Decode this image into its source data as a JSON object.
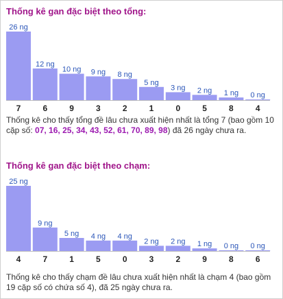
{
  "colors": {
    "title": "#a0158a",
    "bar": "#9b9bf2",
    "value_label": "#2a55b8",
    "axis_label": "#222222",
    "highlight": "#9c1ab0"
  },
  "sections": [
    {
      "title": "Thống kê gan đặc biệt theo tổng:",
      "desc_before": "Thống kê cho thấy tổng đề lâu chưa xuất hiện nhất là tổng 7 (bao gồm 10 cặp số: ",
      "desc_highlight": "07, 16, 25, 34, 43, 52, 61, 70, 89, 98",
      "desc_after": ") đã 26 ngày chưa ra."
    },
    {
      "title": "Thống kê gan đặc biệt theo chạm:",
      "desc_before": "Thống kê cho thấy chạm đề lâu chưa xuất hiện nhất là chạm 4 (bao gồm 19 cặp số có chứa số 4), đã 25 ngày chưa ra.",
      "desc_highlight": "",
      "desc_after": ""
    }
  ],
  "chart_data": [
    {
      "type": "bar",
      "title": "Thống kê gan đặc biệt theo tổng:",
      "categories": [
        "7",
        "6",
        "9",
        "3",
        "2",
        "1",
        "0",
        "5",
        "8",
        "4"
      ],
      "values": [
        26,
        12,
        10,
        9,
        8,
        5,
        3,
        2,
        1,
        0
      ],
      "labels": [
        "26 ng",
        "12 ng",
        "10 ng",
        "9 ng",
        "8 ng",
        "5 ng",
        "3 ng",
        "2 ng",
        "1 ng",
        "0 ng"
      ],
      "ylim": [
        0,
        26
      ]
    },
    {
      "type": "bar",
      "title": "Thống kê gan đặc biệt theo chạm:",
      "categories": [
        "4",
        "7",
        "1",
        "5",
        "0",
        "3",
        "2",
        "9",
        "8",
        "6"
      ],
      "values": [
        25,
        9,
        5,
        4,
        4,
        2,
        2,
        1,
        0,
        0
      ],
      "labels": [
        "25 ng",
        "9 ng",
        "5 ng",
        "4 ng",
        "4 ng",
        "2 ng",
        "2 ng",
        "1 ng",
        "0 ng",
        "0 ng"
      ],
      "ylim": [
        0,
        25
      ]
    }
  ]
}
